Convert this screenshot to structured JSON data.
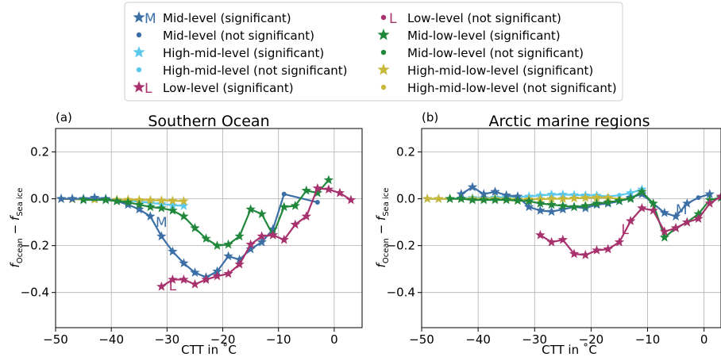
{
  "legend": {
    "entries": [
      {
        "label": "Mid-level (significant)",
        "marker": "star",
        "color": "#3b6fa6",
        "tag": "M"
      },
      {
        "label": "Mid-level (not significant)",
        "marker": "dot",
        "color": "#3b6fa6",
        "tag": ""
      },
      {
        "label": "High-mid-level (significant)",
        "marker": "star",
        "color": "#5bc8ee",
        "tag": ""
      },
      {
        "label": "High-mid-level (not significant)",
        "marker": "dot",
        "color": "#5bc8ee",
        "tag": ""
      },
      {
        "label": "Low-level (significant)",
        "marker": "star",
        "color": "#a8326e",
        "tag": "L"
      },
      {
        "label": "Low-level (not significant)",
        "marker": "dot",
        "color": "#a8326e",
        "tag": "L"
      },
      {
        "label": "Mid-low-level (significant)",
        "marker": "star",
        "color": "#21873a",
        "tag": ""
      },
      {
        "label": "Mid-low-level (not significant)",
        "marker": "dot",
        "color": "#21873a",
        "tag": ""
      },
      {
        "label": "High-mid-low-level (significant)",
        "marker": "star",
        "color": "#c7b83a",
        "tag": ""
      },
      {
        "label": "High-mid-low-level (not significant)",
        "marker": "dot",
        "color": "#c7b83a",
        "tag": ""
      }
    ]
  },
  "chart_data": [
    {
      "type": "line",
      "panel_label": "(a)",
      "title": "Southern Ocean",
      "xlabel": "CTT in ˚C",
      "ylabel_main": "f",
      "ylabel_sub1": "Ocean",
      "ylabel_minus": " − ",
      "ylabel_sub2": "Sea ice",
      "xlim": [
        -50,
        5
      ],
      "ylim": [
        -0.55,
        0.3
      ],
      "xticks": [
        -50,
        -40,
        -30,
        -20,
        -10,
        0
      ],
      "yticks": [
        -0.4,
        -0.2,
        0.0,
        0.2
      ],
      "xtick_labels": [
        "−50",
        "−40",
        "−30",
        "−20",
        "−10",
        "0"
      ],
      "ytick_labels": [
        "−0.4",
        "−0.2",
        "0.0",
        "0.2"
      ],
      "grid": true,
      "series": [
        {
          "name": "High-mid-level",
          "color": "#5bc8ee",
          "x": [
            -49,
            -47,
            -45,
            -43,
            -41,
            -39,
            -37,
            -35,
            -33,
            -31,
            -29,
            -27
          ],
          "y": [
            0.0,
            0.0,
            0.0,
            0.0,
            0.0,
            -0.005,
            -0.008,
            -0.012,
            -0.018,
            -0.022,
            -0.028,
            -0.03
          ],
          "sig": [
            1,
            1,
            1,
            1,
            1,
            1,
            1,
            1,
            1,
            1,
            1,
            1
          ]
        },
        {
          "name": "High-mid-low-level",
          "color": "#c7b83a",
          "x": [
            -49,
            -47,
            -45,
            -43,
            -41,
            -39,
            -37,
            -35,
            -33,
            -31,
            -29,
            -27
          ],
          "y": [
            0.0,
            -0.002,
            -0.003,
            -0.003,
            -0.004,
            -0.004,
            -0.004,
            -0.005,
            -0.006,
            -0.007,
            -0.008,
            -0.01
          ],
          "sig": [
            1,
            1,
            1,
            1,
            1,
            1,
            1,
            1,
            1,
            1,
            1,
            1
          ]
        },
        {
          "name": "Mid-level",
          "color": "#3b6fa6",
          "tag": "M",
          "tag_x": -31,
          "tag_y": -0.12,
          "x": [
            -49,
            -47,
            -45,
            -43,
            -41,
            -39,
            -37,
            -35,
            -33,
            -31,
            -29,
            -27,
            -25,
            -23,
            -21,
            -19,
            -17,
            -15,
            -13,
            -11,
            -9,
            -3
          ],
          "y": [
            0.0,
            0.0,
            0.0,
            0.005,
            0.0,
            -0.01,
            -0.025,
            -0.045,
            -0.075,
            -0.16,
            -0.225,
            -0.275,
            -0.315,
            -0.335,
            -0.31,
            -0.245,
            -0.26,
            -0.215,
            -0.185,
            -0.13,
            0.02,
            -0.015
          ],
          "sig": [
            1,
            1,
            1,
            1,
            1,
            1,
            1,
            1,
            1,
            1,
            1,
            1,
            1,
            1,
            1,
            1,
            1,
            1,
            1,
            1,
            0,
            0
          ]
        },
        {
          "name": "Mid-low-level",
          "color": "#21873a",
          "x": [
            -45,
            -41,
            -39,
            -37,
            -35,
            -33,
            -31,
            -29,
            -27,
            -25,
            -23,
            -21,
            -19,
            -17,
            -15,
            -13,
            -11,
            -9,
            -7,
            -5,
            -3,
            -1
          ],
          "y": [
            -0.005,
            -0.005,
            -0.01,
            -0.015,
            -0.025,
            -0.035,
            -0.04,
            -0.05,
            -0.075,
            -0.125,
            -0.17,
            -0.2,
            -0.195,
            -0.16,
            -0.045,
            -0.065,
            -0.155,
            -0.035,
            -0.03,
            0.035,
            0.025,
            0.08
          ],
          "sig": [
            1,
            1,
            1,
            1,
            1,
            1,
            1,
            1,
            1,
            1,
            1,
            1,
            1,
            1,
            1,
            1,
            1,
            1,
            1,
            1,
            1,
            1
          ]
        },
        {
          "name": "Low-level",
          "color": "#a8326e",
          "tag": "L",
          "tag_x": -29,
          "tag_y": -0.39,
          "x": [
            -31,
            -29,
            -27,
            -25,
            -23,
            -21,
            -19,
            -17,
            -15,
            -13,
            -11,
            -9,
            -7,
            -5,
            -3,
            -1,
            1,
            3
          ],
          "y": [
            -0.375,
            -0.345,
            -0.345,
            -0.365,
            -0.345,
            -0.33,
            -0.32,
            -0.28,
            -0.195,
            -0.16,
            -0.155,
            -0.175,
            -0.11,
            -0.075,
            0.045,
            0.04,
            0.025,
            -0.005
          ],
          "sig": [
            1,
            1,
            1,
            1,
            1,
            1,
            1,
            1,
            1,
            1,
            1,
            1,
            1,
            1,
            1,
            1,
            1,
            1
          ]
        }
      ]
    },
    {
      "type": "line",
      "panel_label": "(b)",
      "title": "Arctic marine regions",
      "xlabel": "CTT in ˚C",
      "ylabel_main": "f",
      "ylabel_sub1": "Ocean",
      "ylabel_minus": " − ",
      "ylabel_sub2": "Sea ice",
      "xlim": [
        -50,
        3
      ],
      "ylim": [
        -0.55,
        0.3
      ],
      "xticks": [
        -50,
        -40,
        -30,
        -20,
        -10,
        0
      ],
      "yticks": [
        -0.4,
        -0.2,
        0.0,
        0.2
      ],
      "xtick_labels": [
        "−50",
        "−40",
        "−30",
        "−20",
        "−10",
        "0"
      ],
      "ytick_labels": [
        "−0.4",
        "−0.2",
        "0.0",
        "0.2"
      ],
      "grid": true,
      "series": [
        {
          "name": "High-mid-level",
          "color": "#5bc8ee",
          "x": [
            -49,
            -47,
            -45,
            -43,
            -41,
            -39,
            -37,
            -35,
            -33,
            -31,
            -29,
            -27,
            -25,
            -23,
            -21,
            -19,
            -17,
            -15,
            -13,
            -11
          ],
          "y": [
            0.0,
            0.0,
            0.0,
            0.002,
            0.004,
            0.004,
            0.005,
            0.008,
            0.008,
            0.01,
            0.014,
            0.018,
            0.018,
            0.016,
            0.015,
            0.014,
            0.01,
            0.015,
            0.025,
            0.04
          ],
          "sig": [
            1,
            1,
            1,
            1,
            1,
            1,
            1,
            1,
            1,
            1,
            1,
            1,
            1,
            1,
            1,
            1,
            0,
            0,
            1,
            1
          ]
        },
        {
          "name": "High-mid-low-level",
          "color": "#c7b83a",
          "x": [
            -49,
            -47,
            -45,
            -43,
            -41,
            -39,
            -37,
            -35,
            -33,
            -31,
            -29,
            -27,
            -25,
            -23,
            -21,
            -19,
            -17,
            -15,
            -13
          ],
          "y": [
            0.0,
            0.0,
            0.0,
            0.0,
            0.0,
            0.0,
            0.0,
            0.0,
            -0.002,
            -0.002,
            -0.002,
            0.0,
            0.0,
            0.002,
            0.004,
            0.005,
            0.005,
            0.0,
            0.0
          ],
          "sig": [
            1,
            1,
            1,
            1,
            1,
            1,
            1,
            1,
            1,
            1,
            1,
            1,
            1,
            1,
            1,
            1,
            1,
            0,
            0
          ]
        },
        {
          "name": "Mid-level",
          "color": "#3b6fa6",
          "tag": "M",
          "tag_x": -4,
          "tag_y": -0.065,
          "x": [
            -43,
            -41,
            -39,
            -37,
            -35,
            -33,
            -31,
            -29,
            -27,
            -25,
            -23,
            -21,
            -19,
            -17,
            -15,
            -13,
            -11,
            -9,
            -7,
            -5,
            -3,
            -1,
            1
          ],
          "y": [
            0.02,
            0.05,
            0.02,
            0.03,
            0.015,
            0.01,
            -0.035,
            -0.05,
            -0.055,
            -0.045,
            -0.035,
            -0.04,
            -0.025,
            -0.02,
            -0.01,
            0.005,
            0.02,
            -0.02,
            -0.06,
            -0.075,
            -0.02,
            0.005,
            0.02
          ],
          "sig": [
            1,
            1,
            1,
            1,
            1,
            1,
            1,
            1,
            1,
            1,
            1,
            1,
            1,
            1,
            1,
            1,
            1,
            0,
            1,
            1,
            1,
            0,
            1
          ]
        },
        {
          "name": "Mid-low-level",
          "color": "#21873a",
          "x": [
            -45,
            -43,
            -41,
            -39,
            -37,
            -35,
            -33,
            -31,
            -29,
            -27,
            -25,
            -23,
            -21,
            -19,
            -17,
            -15,
            -13,
            -11,
            -9,
            -7,
            -5,
            -3,
            -1,
            1,
            3
          ],
          "y": [
            0.0,
            0.0,
            -0.005,
            -0.005,
            -0.005,
            -0.005,
            -0.008,
            -0.01,
            -0.02,
            -0.025,
            -0.03,
            -0.035,
            -0.03,
            -0.02,
            -0.015,
            -0.008,
            0.0,
            0.03,
            -0.02,
            -0.165,
            -0.125,
            -0.1,
            -0.065,
            -0.005,
            0.005
          ],
          "sig": [
            1,
            1,
            1,
            1,
            1,
            1,
            1,
            1,
            1,
            1,
            1,
            1,
            1,
            1,
            1,
            1,
            1,
            1,
            1,
            1,
            1,
            1,
            1,
            1,
            1
          ]
        },
        {
          "name": "Low-level",
          "color": "#a8326e",
          "tag": "L",
          "tag_x": -14,
          "tag_y": -0.15,
          "x": [
            -29,
            -27,
            -25,
            -23,
            -21,
            -19,
            -17,
            -15,
            -13,
            -11,
            -9,
            -7,
            -5,
            -3,
            -1,
            1,
            3
          ],
          "y": [
            -0.155,
            -0.185,
            -0.175,
            -0.235,
            -0.24,
            -0.22,
            -0.215,
            -0.185,
            -0.095,
            -0.04,
            -0.05,
            -0.14,
            -0.125,
            -0.1,
            -0.085,
            -0.02,
            0.01
          ],
          "sig": [
            1,
            1,
            1,
            1,
            1,
            1,
            1,
            1,
            1,
            1,
            1,
            1,
            1,
            1,
            1,
            1,
            1
          ]
        }
      ]
    }
  ]
}
